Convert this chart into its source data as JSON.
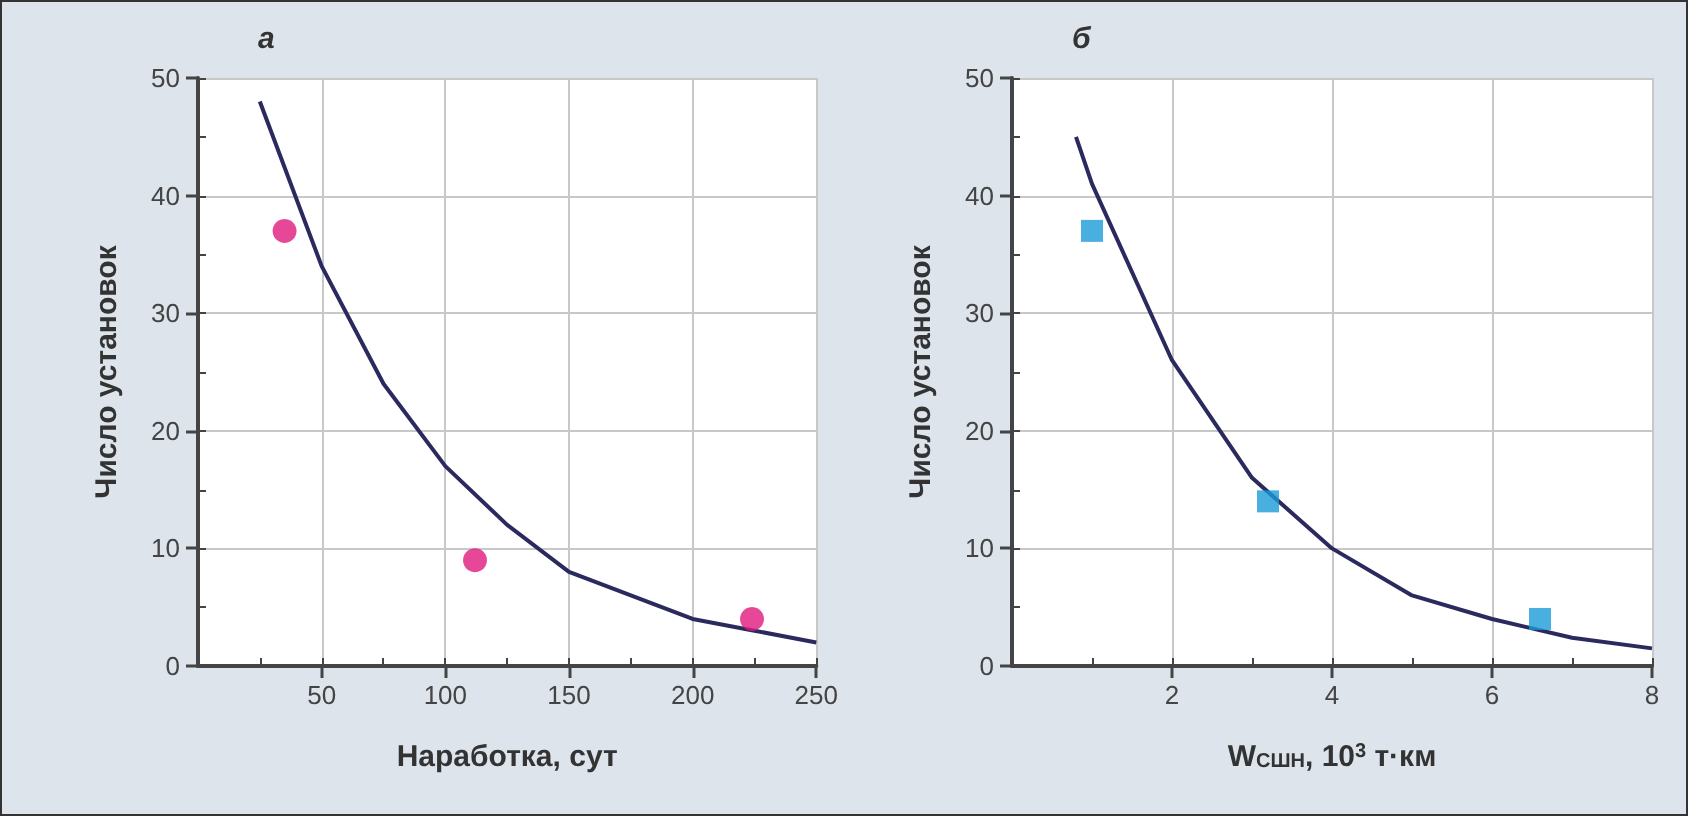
{
  "chart_data": [
    {
      "type": "scatter",
      "title": "а",
      "xlabel": "Наработка, сут",
      "ylabel": "Число установок",
      "xlim": [
        0,
        250
      ],
      "ylim": [
        0,
        50
      ],
      "xticks": [
        {
          "value": 0,
          "label": null
        },
        {
          "value": 25,
          "label": null
        },
        50,
        {
          "value": 75,
          "label": null
        },
        100,
        {
          "value": 125,
          "label": null
        },
        150,
        {
          "value": 175,
          "label": null
        },
        200,
        {
          "value": 225,
          "label": null
        },
        250
      ],
      "yticks": [
        0,
        {
          "value": 5,
          "label": null
        },
        10,
        {
          "value": 15,
          "label": null
        },
        20,
        {
          "value": 25,
          "label": null
        },
        30,
        {
          "value": 35,
          "label": null
        },
        40,
        {
          "value": 45,
          "label": null
        },
        50
      ],
      "grid": true,
      "marker": "circle",
      "series": [
        {
          "type": "scatter",
          "color": "#e0197d",
          "x": [
            35,
            112,
            224
          ],
          "values": [
            37,
            9,
            4
          ]
        },
        {
          "type": "line",
          "color": "#2b2a5e",
          "marker": "none",
          "x": [
            25,
            50,
            75,
            100,
            125,
            150,
            175,
            200,
            225,
            250
          ],
          "values": [
            48,
            34,
            24,
            17,
            12,
            8,
            6,
            4,
            3,
            2
          ]
        }
      ]
    },
    {
      "type": "scatter",
      "title": "б",
      "xlabel": "W$_{СШН}$, 10$^{3}$ т·км",
      "ylabel": "Число установок",
      "xlim": [
        0,
        8
      ],
      "ylim": [
        0,
        50
      ],
      "xticks": [
        {
          "value": 0,
          "label": null
        },
        {
          "value": 1,
          "label": null
        },
        2,
        {
          "value": 3,
          "label": null
        },
        4,
        {
          "value": 5,
          "label": null
        },
        6,
        {
          "value": 7,
          "label": null
        },
        8
      ],
      "yticks": [
        0,
        {
          "value": 5,
          "label": null
        },
        10,
        {
          "value": 15,
          "label": null
        },
        20,
        {
          "value": 25,
          "label": null
        },
        30,
        {
          "value": 35,
          "label": null
        },
        40,
        {
          "value": 45,
          "label": null
        },
        50
      ],
      "grid": true,
      "marker": "square",
      "series": [
        {
          "type": "scatter",
          "color": "#1a9bd7",
          "x": [
            1,
            3.2,
            6.6
          ],
          "values": [
            37,
            14,
            4
          ]
        },
        {
          "type": "line",
          "color": "#2b2a5e",
          "marker": "none",
          "x": [
            0.8,
            1,
            2,
            3,
            4,
            5,
            6,
            7,
            8
          ],
          "values": [
            45,
            41,
            26,
            16,
            10,
            6,
            4,
            2.4,
            1.5
          ]
        }
      ]
    }
  ]
}
